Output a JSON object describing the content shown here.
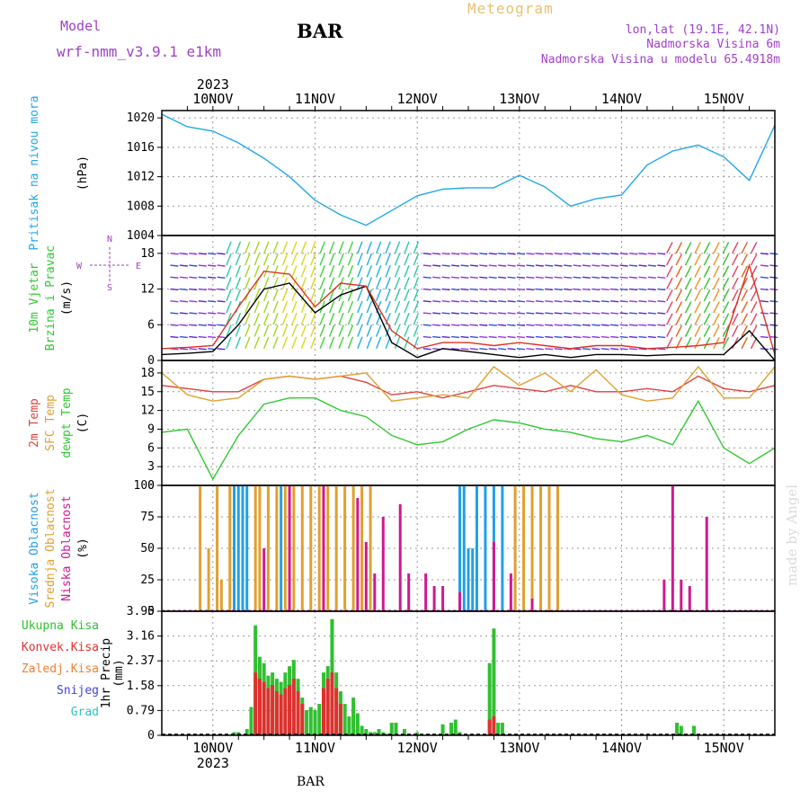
{
  "header": {
    "model_label": "Model",
    "model_name": "wrf-nmm_v3.9.1 e1km",
    "station": "BAR",
    "product": "Meteogram",
    "coords": "lon,lat (19.1E, 42.1N)",
    "altitude": "Nadmorska Visina 6m",
    "model_altitude": "Nadmorska Visina u modelu 65.4918m",
    "footer_station": "BAR",
    "watermark": "made by Angel"
  },
  "colors": {
    "pressure": "#22a8e8",
    "wind_speed": "#000000",
    "wind_gust": "#e03020",
    "t2m": "#e04040",
    "sfc": "#e0a030",
    "dewpt": "#30c830",
    "cloud_high": "#20a0e8",
    "cloud_mid": "#e0a030",
    "cloud_low": "#d01890",
    "precip_total": "#30c030",
    "precip_conv": "#e03030",
    "precip_frz": "#f08030",
    "precip_snow": "#4040e0",
    "precip_hail": "#30c0c0",
    "grid": "#999999"
  },
  "chart_data": {
    "type": "line",
    "x_axis": {
      "type": "time",
      "year": "2023",
      "date_labels": [
        "10NOV",
        "11NOV",
        "12NOV",
        "13NOV",
        "14NOV",
        "15NOV"
      ],
      "start": "2023-11-09T12:00",
      "end": "2023-11-15T12:00"
    },
    "panels": [
      {
        "id": "pressure",
        "ylabels": [
          "Pritisak na nivou mora",
          "(hPa)"
        ],
        "ylim": [
          1004,
          1021
        ],
        "yticks": [
          1004,
          1008,
          1012,
          1016,
          1020
        ],
        "series": [
          {
            "key": "pressure",
            "x_hours": [
              0,
              6,
              12,
              18,
              24,
              30,
              36,
              42,
              48,
              54,
              60,
              66,
              72,
              78,
              84,
              90,
              96,
              102,
              108,
              114,
              120,
              126,
              132,
              138,
              144
            ],
            "values": [
              1020.5,
              1018.8,
              1018.2,
              1016.6,
              1014.5,
              1012,
              1008.8,
              1006.8,
              1005.4,
              1007.4,
              1009.4,
              1010.3,
              1010.5,
              1010.5,
              1012.2,
              1010.6,
              1008,
              1009,
              1009.5,
              1013.6,
              1015.5,
              1016.3,
              1014.7,
              1011.5,
              1019
            ]
          }
        ]
      },
      {
        "id": "wind",
        "ylabels": [
          "10m Vjetar",
          "Brzina i Pravac",
          "(m/s)"
        ],
        "compass": {
          "n": "N",
          "s": "S",
          "e": "E",
          "w": "W"
        },
        "ylim": [
          0,
          21
        ],
        "yticks": [
          0,
          6,
          12,
          18
        ],
        "series": [
          {
            "key": "wind_speed",
            "x_hours": [
              0,
              6,
              12,
              18,
              24,
              30,
              36,
              42,
              48,
              54,
              60,
              66,
              72,
              78,
              84,
              90,
              96,
              102,
              108,
              114,
              120,
              126,
              132,
              138,
              144
            ],
            "values": [
              1,
              1.2,
              1.5,
              6,
              12,
              13,
              8,
              11,
              12.5,
              3,
              0.5,
              2,
              1.5,
              1,
              0.5,
              1,
              0.5,
              1,
              1,
              0.8,
              1,
              1,
              1,
              5,
              0
            ]
          },
          {
            "key": "wind_gust",
            "x_hours": [
              0,
              6,
              12,
              18,
              24,
              30,
              36,
              42,
              48,
              54,
              60,
              66,
              72,
              78,
              84,
              90,
              96,
              102,
              108,
              114,
              120,
              126,
              132,
              138,
              144
            ],
            "values": [
              2,
              2.2,
              2.5,
              9,
              15,
              14.5,
              9,
              13,
              12.5,
              5,
              2,
              3,
              3,
              2.5,
              3,
              2.5,
              2,
              2.5,
              2.5,
              2,
              2.2,
              2.5,
              3,
              16,
              1
            ]
          }
        ]
      },
      {
        "id": "temp",
        "ylabels": [
          "2m Temp",
          "SFC Temp",
          "dewpt Temp",
          "(C)"
        ],
        "ylim": [
          0,
          20
        ],
        "yticks": [
          0,
          3,
          6,
          9,
          12,
          15,
          18
        ],
        "series": [
          {
            "key": "t2m",
            "x_hours": [
              0,
              6,
              12,
              18,
              24,
              30,
              36,
              42,
              48,
              54,
              60,
              66,
              72,
              78,
              84,
              90,
              96,
              102,
              108,
              114,
              120,
              126,
              132,
              138,
              144
            ],
            "values": [
              16,
              15.5,
              15,
              15,
              17,
              17.5,
              17,
              17.5,
              16.5,
              14.5,
              15,
              14,
              15,
              16,
              15.5,
              15,
              16,
              15,
              15,
              15.5,
              15,
              17.5,
              15.5,
              15,
              16
            ]
          },
          {
            "key": "sfc",
            "x_hours": [
              0,
              6,
              12,
              18,
              24,
              30,
              36,
              42,
              48,
              54,
              60,
              66,
              72,
              78,
              84,
              90,
              96,
              102,
              108,
              114,
              120,
              126,
              132,
              138,
              144
            ],
            "values": [
              18,
              14.5,
              13.5,
              14,
              17,
              17.5,
              17,
              17.5,
              18,
              13.5,
              14,
              14.5,
              14,
              19,
              16,
              18,
              15,
              18.5,
              14.5,
              13.5,
              14,
              19,
              14,
              14,
              19
            ]
          },
          {
            "key": "dewpt",
            "x_hours": [
              0,
              6,
              12,
              18,
              24,
              30,
              36,
              42,
              48,
              54,
              60,
              66,
              72,
              78,
              84,
              90,
              96,
              102,
              108,
              114,
              120,
              126,
              132,
              138,
              144
            ],
            "values": [
              8.5,
              9,
              1,
              8,
              13,
              14,
              14,
              12,
              11,
              8,
              6.5,
              7,
              9,
              10.5,
              10,
              9,
              8.5,
              7.5,
              7,
              8,
              6.5,
              13.5,
              6,
              3.5,
              6
            ]
          }
        ]
      },
      {
        "id": "cloud",
        "ylabels": [
          "Visoka Oblacnost",
          "Srednja Oblacnost",
          "Niska Oblacnost",
          "(%)"
        ],
        "ylim": [
          0,
          100
        ],
        "yticks": [
          0,
          25,
          50,
          75,
          100
        ],
        "series": [
          {
            "key": "cloud_high",
            "x_hours": [
              17,
              18,
              19,
              20,
              28,
              70,
              71,
              72,
              73,
              74,
              76,
              78,
              80
            ],
            "values": [
              100,
              100,
              100,
              100,
              100,
              100,
              100,
              50,
              50,
              100,
              100,
              100,
              100
            ]
          },
          {
            "key": "cloud_mid",
            "x_hours": [
              9,
              11,
              13,
              14,
              16,
              22,
              23,
              25,
              27,
              29,
              31,
              33,
              35,
              37,
              39,
              41,
              43,
              45,
              47,
              49,
              83,
              85,
              87,
              89,
              91,
              93
            ],
            "values": [
              100,
              50,
              100,
              25,
              100,
              100,
              100,
              100,
              100,
              100,
              100,
              100,
              100,
              100,
              100,
              100,
              100,
              100,
              100,
              100,
              100,
              100,
              100,
              100,
              100,
              100
            ]
          },
          {
            "key": "cloud_low",
            "x_hours": [
              24,
              30,
              38,
              46,
              48,
              50,
              52,
              56,
              58,
              62,
              64,
              66,
              70,
              78,
              82,
              87,
              118,
              120,
              122,
              124,
              128
            ],
            "values": [
              50,
              100,
              100,
              90,
              55,
              30,
              75,
              85,
              30,
              30,
              20,
              20,
              15,
              55,
              30,
              10,
              25,
              100,
              25,
              20,
              75
            ]
          }
        ]
      },
      {
        "id": "precip",
        "ylabels": [
          "1hr Precip",
          "(mm)"
        ],
        "legend": [
          "Ukupna Kisa",
          "Konvek.Kisa",
          "Zaledj.Kisa",
          "Snijeg",
          "Grad"
        ],
        "ylim": [
          0,
          3.95
        ],
        "yticks": [
          0,
          0.79,
          1.58,
          2.37,
          3.16,
          3.95
        ],
        "series": [
          {
            "key": "precip_total",
            "x_hours": [
              17,
              18,
              20,
              21,
              22,
              23,
              24,
              25,
              26,
              27,
              28,
              29,
              30,
              31,
              32,
              33,
              34,
              35,
              36,
              37,
              38,
              39,
              40,
              41,
              42,
              43,
              44,
              45,
              46,
              47,
              48,
              49,
              50,
              51,
              52,
              53,
              54,
              55,
              57,
              60,
              66,
              68,
              69,
              70,
              77,
              78,
              79,
              80,
              121,
              122,
              125
            ],
            "values": [
              0.1,
              0.1,
              0.2,
              0.9,
              3.5,
              2.5,
              2.3,
              1.9,
              2.0,
              1.8,
              1.7,
              2.0,
              2.2,
              2.4,
              1.8,
              1.2,
              0.8,
              0.9,
              0.8,
              1.0,
              2.0,
              2.2,
              3.7,
              2.0,
              1.4,
              1.0,
              0.6,
              1.2,
              0.7,
              0.3,
              0.2,
              0.1,
              0.1,
              0.2,
              0.1,
              0.05,
              0.4,
              0.4,
              0.2,
              0.1,
              0.35,
              0.4,
              0.5,
              0.1,
              2.3,
              3.4,
              0.4,
              0.4,
              0.4,
              0.3,
              0.3
            ]
          },
          {
            "key": "precip_conv",
            "x_hours": [
              22,
              23,
              24,
              25,
              26,
              27,
              28,
              29,
              30,
              31,
              32,
              33,
              38,
              39,
              40,
              41,
              42,
              77,
              78
            ],
            "values": [
              2.0,
              1.8,
              1.7,
              1.5,
              1.6,
              1.4,
              1.3,
              1.5,
              1.6,
              1.8,
              1.4,
              1.0,
              1.5,
              1.8,
              2.0,
              1.5,
              1.0,
              0.5,
              0.6
            ]
          }
        ]
      }
    ]
  }
}
